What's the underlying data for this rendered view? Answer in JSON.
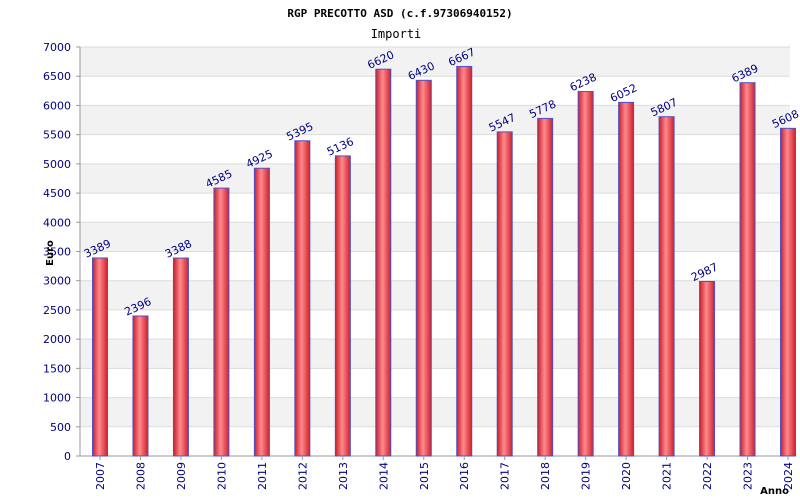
{
  "chart_data": {
    "type": "bar",
    "title": "RGP PRECOTTO ASD (c.f.97306940152)",
    "subtitle": "Importi",
    "xlabel": "Anno",
    "ylabel": "Euro",
    "categories": [
      "2007",
      "2008",
      "2009",
      "2010",
      "2011",
      "2012",
      "2013",
      "2014",
      "2015",
      "2016",
      "2017",
      "2018",
      "2019",
      "2020",
      "2021",
      "2022",
      "2023",
      "2024"
    ],
    "values": [
      3389,
      2396,
      3388,
      4585,
      4925,
      5395,
      5136,
      6620,
      6430,
      6667,
      5547,
      5778,
      6238,
      6052,
      5807,
      2987,
      6389,
      5608
    ],
    "ylim": [
      0,
      7000
    ],
    "ytick_step": 500,
    "grid": true,
    "bar_color": "#e8343c",
    "bar_edge_color": "#5050c8",
    "band_color": "#f2f2f2",
    "text_color": "#000080"
  }
}
